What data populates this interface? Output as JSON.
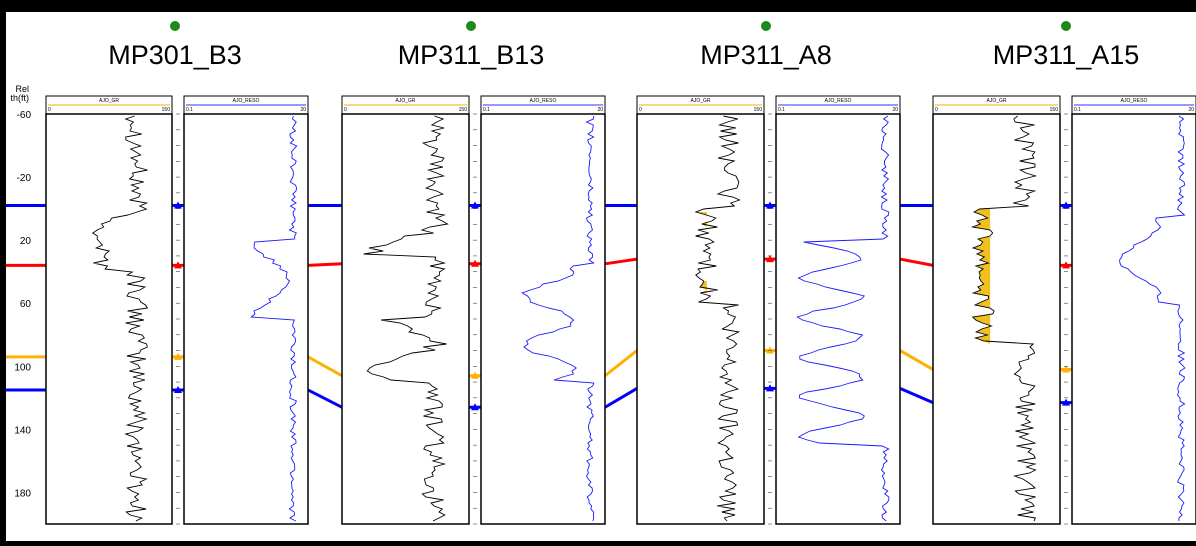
{
  "depth_axis": {
    "title_line1": "Rel",
    "title_line2": "th(ft)",
    "ticks": [
      -60,
      -20,
      20,
      60,
      100,
      140,
      180
    ],
    "min": -60,
    "max": 200
  },
  "curve_defaults": {
    "gr": {
      "name": "AJO_GR",
      "min": "0",
      "max": "150",
      "color": "#000000"
    },
    "res": {
      "name": "AJO_RESO",
      "min": "0.1",
      "max": "20",
      "color": "#1a1aff"
    }
  },
  "wells": [
    {
      "name": "MP301_B3",
      "status_color": "#1a8a1a"
    },
    {
      "name": "MP311_B13",
      "status_color": "#1a8a1a"
    },
    {
      "name": "MP311_A8",
      "status_color": "#1a8a1a"
    },
    {
      "name": "MP311_A15",
      "status_color": "#1a8a1a"
    }
  ],
  "horizons": [
    {
      "color": "#0000ff",
      "depths": [
        -2,
        -2,
        -2,
        -2
      ]
    },
    {
      "color": "#ff0000",
      "depths": [
        36,
        35,
        32,
        36
      ]
    },
    {
      "color": "#ffb000",
      "depths": [
        94,
        106,
        90,
        102
      ]
    },
    {
      "color": "#0000ff",
      "depths": [
        115,
        126,
        114,
        123
      ]
    }
  ],
  "colors": {
    "background": "#ffffff",
    "frame": "#000000",
    "fill": "#f0c020"
  }
}
